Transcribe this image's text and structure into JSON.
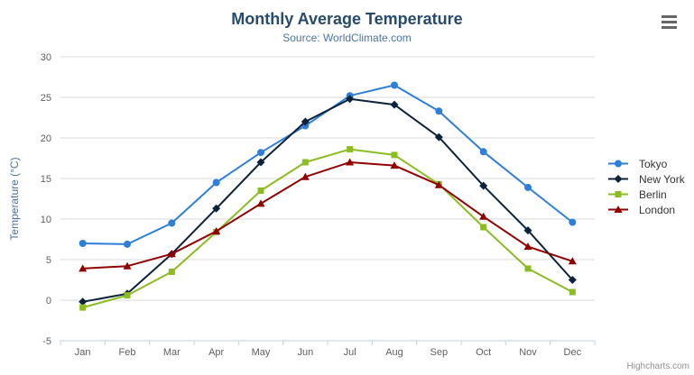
{
  "header": {
    "title": "Monthly Average Temperature",
    "subtitle": "Source: WorldClimate.com"
  },
  "menu": {
    "icon": "hamburger-icon"
  },
  "credits": {
    "label": "Highcharts.com"
  },
  "colors": {
    "title": "#274b6d",
    "subtitle": "#4d759e",
    "axis_labels": "#606060",
    "axis_title": "#4d759e",
    "gridline": "#d8d8d8",
    "axis_line": "#c0d0e0",
    "legend_text": "#333333",
    "credits_text": "#909090"
  },
  "chart_data": {
    "type": "line",
    "title": "Monthly Average Temperature",
    "subtitle": "Source: WorldClimate.com",
    "categories": [
      "Jan",
      "Feb",
      "Mar",
      "Apr",
      "May",
      "Jun",
      "Jul",
      "Aug",
      "Sep",
      "Oct",
      "Nov",
      "Dec"
    ],
    "xlabel": "",
    "ylabel": "Temperature (°C)",
    "ylim": [
      -5,
      30
    ],
    "ytick_interval": 5,
    "grid": true,
    "legend_position": "right",
    "series": [
      {
        "name": "Tokyo",
        "color": "#2f7ed8",
        "marker": "circle",
        "values": [
          7.0,
          6.9,
          9.5,
          14.5,
          18.2,
          21.5,
          25.2,
          26.5,
          23.3,
          18.3,
          13.9,
          9.6
        ]
      },
      {
        "name": "New York",
        "color": "#0d233a",
        "marker": "diamond",
        "values": [
          -0.2,
          0.8,
          5.7,
          11.3,
          17.0,
          22.0,
          24.8,
          24.1,
          20.1,
          14.1,
          8.6,
          2.5
        ]
      },
      {
        "name": "Berlin",
        "color": "#8bbc21",
        "marker": "square",
        "values": [
          -0.9,
          0.6,
          3.5,
          8.4,
          13.5,
          17.0,
          18.6,
          17.9,
          14.3,
          9.0,
          3.9,
          1.0
        ]
      },
      {
        "name": "London",
        "color": "#910000",
        "marker": "triangle",
        "values": [
          3.9,
          4.2,
          5.7,
          8.5,
          11.9,
          15.2,
          17.0,
          16.6,
          14.2,
          10.3,
          6.6,
          4.8
        ]
      }
    ]
  }
}
